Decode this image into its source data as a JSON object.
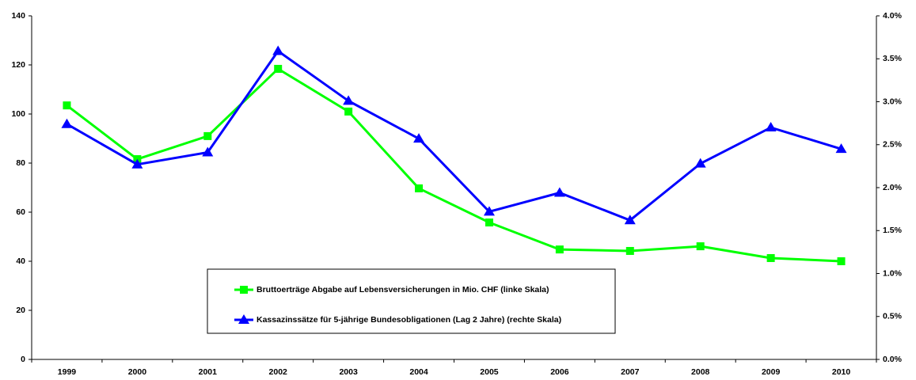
{
  "chart_data": {
    "type": "line",
    "categories": [
      "1999",
      "2000",
      "2001",
      "2002",
      "2003",
      "2004",
      "2005",
      "2006",
      "2007",
      "2008",
      "2009",
      "2010"
    ],
    "series": [
      {
        "name": "Bruttoerträge Abgabe auf Lebensversicherungen in Mio. CHF (linke Skala)",
        "color": "#00ff00",
        "marker": "square",
        "values": [
          103.5,
          81.6,
          91,
          118.4,
          101,
          69.7,
          55.8,
          44.8,
          44.2,
          46.1,
          41.3,
          40
        ]
      },
      {
        "name": "Kassazinssätze für 5-jährige Bundesobligationen (Lag 2 Jahre) (rechte Skala)",
        "color": "#0000ff",
        "marker": "triangle",
        "axis": "y2",
        "values": [
          2.74,
          2.27,
          2.41,
          3.59,
          3.01,
          2.57,
          1.72,
          1.94,
          1.62,
          2.28,
          2.7,
          2.45
        ]
      }
    ],
    "ylim": [
      0,
      140
    ],
    "yticks": [
      0,
      20,
      40,
      60,
      80,
      100,
      120,
      140
    ],
    "y2lim": [
      0,
      4
    ],
    "y2ticks": [
      {
        "value": 0,
        "label": "0.0%"
      },
      {
        "value": 0.5,
        "label": "0.5%"
      },
      {
        "value": 1,
        "label": "1.0%"
      },
      {
        "value": 1.5,
        "label": "1.5%"
      },
      {
        "value": 2,
        "label": "2.0%"
      },
      {
        "value": 2.5,
        "label": "2.5%"
      },
      {
        "value": 3,
        "label": "3.0%"
      },
      {
        "value": 3.5,
        "label": "3.5%"
      },
      {
        "value": 4,
        "label": "4.0%"
      }
    ],
    "grid": false
  }
}
